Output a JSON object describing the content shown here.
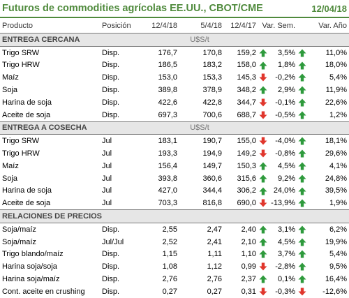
{
  "title": "Futuros de commodities agrícolas EE.UU., CBOT/CME",
  "date": "12/04/18",
  "colors": {
    "accent": "#4f8a3c",
    "up": "#2e9a3c",
    "down": "#e0362c"
  },
  "headers": [
    "Producto",
    "Posición",
    "12/4/18",
    "5/4/18",
    "12/4/17",
    "Var. Sem.",
    "Var. Año"
  ],
  "sections": [
    {
      "name": "ENTREGA CERCANA",
      "unit": "U$S/t",
      "rows": [
        {
          "product": "Trigo SRW",
          "pos": "Disp.",
          "v1": "176,7",
          "v2": "170,8",
          "v3": "159,2",
          "a1": "up",
          "sem": "3,5%",
          "a2": "up",
          "anio": "11,0%"
        },
        {
          "product": "Trigo HRW",
          "pos": "Disp.",
          "v1": "186,5",
          "v2": "183,2",
          "v3": "158,0",
          "a1": "up",
          "sem": "1,8%",
          "a2": "up",
          "anio": "18,0%"
        },
        {
          "product": "Maíz",
          "pos": "Disp.",
          "v1": "153,0",
          "v2": "153,3",
          "v3": "145,3",
          "a1": "down",
          "sem": "-0,2%",
          "a2": "up",
          "anio": "5,4%"
        },
        {
          "product": "Soja",
          "pos": "Disp.",
          "v1": "389,8",
          "v2": "378,9",
          "v3": "348,2",
          "a1": "up",
          "sem": "2,9%",
          "a2": "up",
          "anio": "11,9%"
        },
        {
          "product": "Harina de soja",
          "pos": "Disp.",
          "v1": "422,6",
          "v2": "422,8",
          "v3": "344,7",
          "a1": "down",
          "sem": "-0,1%",
          "a2": "up",
          "anio": "22,6%"
        },
        {
          "product": "Aceite de soja",
          "pos": "Disp.",
          "v1": "697,3",
          "v2": "700,6",
          "v3": "688,7",
          "a1": "down",
          "sem": "-0,5%",
          "a2": "up",
          "anio": "1,2%"
        }
      ]
    },
    {
      "name": "ENTREGA A COSECHA",
      "unit": "U$S/t",
      "rows": [
        {
          "product": "Trigo SRW",
          "pos": "Jul",
          "v1": "183,1",
          "v2": "190,7",
          "v3": "155,0",
          "a1": "down",
          "sem": "-4,0%",
          "a2": "up",
          "anio": "18,1%"
        },
        {
          "product": "Trigo HRW",
          "pos": "Jul",
          "v1": "193,3",
          "v2": "194,9",
          "v3": "149,2",
          "a1": "down",
          "sem": "-0,8%",
          "a2": "up",
          "anio": "29,6%"
        },
        {
          "product": "Maíz",
          "pos": "Jul",
          "v1": "156,4",
          "v2": "149,7",
          "v3": "150,3",
          "a1": "up",
          "sem": "4,5%",
          "a2": "up",
          "anio": "4,1%"
        },
        {
          "product": "Soja",
          "pos": "Jul",
          "v1": "393,8",
          "v2": "360,6",
          "v3": "315,6",
          "a1": "up",
          "sem": "9,2%",
          "a2": "up",
          "anio": "24,8%"
        },
        {
          "product": "Harina de soja",
          "pos": "Jul",
          "v1": "427,0",
          "v2": "344,4",
          "v3": "306,2",
          "a1": "up",
          "sem": "24,0%",
          "a2": "up",
          "anio": "39,5%"
        },
        {
          "product": "Aceite de soja",
          "pos": "Jul",
          "v1": "703,3",
          "v2": "816,8",
          "v3": "690,0",
          "a1": "down",
          "sem": "-13,9%",
          "a2": "up",
          "anio": "1,9%"
        }
      ]
    },
    {
      "name": "RELACIONES DE PRECIOS",
      "unit": "",
      "rows": [
        {
          "product": "Soja/maíz",
          "pos": "Disp.",
          "v1": "2,55",
          "v2": "2,47",
          "v3": "2,40",
          "a1": "up",
          "sem": "3,1%",
          "a2": "up",
          "anio": "6,2%"
        },
        {
          "product": "Soja/maíz",
          "pos": "Jul/Jul",
          "v1": "2,52",
          "v2": "2,41",
          "v3": "2,10",
          "a1": "up",
          "sem": "4,5%",
          "a2": "up",
          "anio": "19,9%"
        },
        {
          "product": "Trigo blando/maíz",
          "pos": "Disp.",
          "v1": "1,15",
          "v2": "1,11",
          "v3": "1,10",
          "a1": "up",
          "sem": "3,7%",
          "a2": "up",
          "anio": "5,4%"
        },
        {
          "product": "Harina soja/soja",
          "pos": "Disp.",
          "v1": "1,08",
          "v2": "1,12",
          "v3": "0,99",
          "a1": "down",
          "sem": "-2,8%",
          "a2": "up",
          "anio": "9,5%"
        },
        {
          "product": "Harina soja/maíz",
          "pos": "Disp.",
          "v1": "2,76",
          "v2": "2,76",
          "v3": "2,37",
          "a1": "up",
          "sem": "0,1%",
          "a2": "up",
          "anio": "16,4%"
        },
        {
          "product": "Cont. aceite en crushing",
          "pos": "Disp.",
          "v1": "0,27",
          "v2": "0,27",
          "v3": "0,31",
          "a1": "down",
          "sem": "-0,3%",
          "a2": "down",
          "anio": "-12,6%"
        }
      ]
    }
  ]
}
